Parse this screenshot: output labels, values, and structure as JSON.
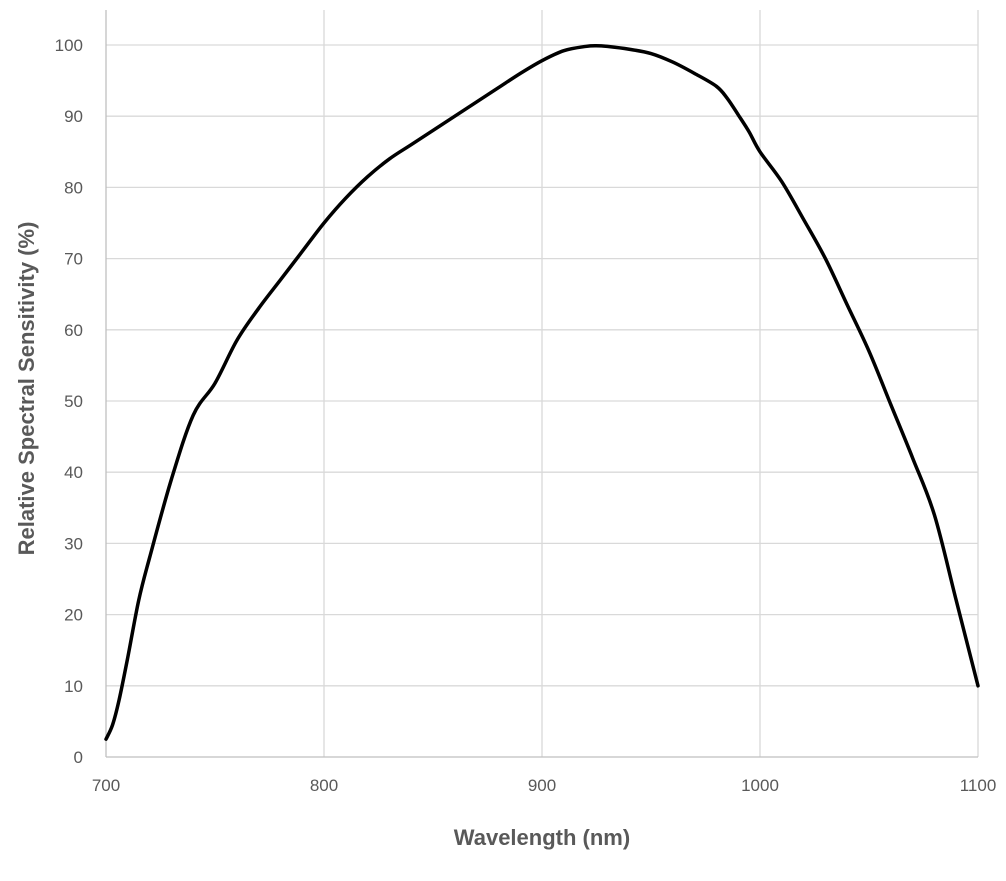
{
  "chart_data": {
    "type": "line",
    "xlabel": "Wavelength (nm)",
    "ylabel": "Relative Spectral Sensitivity (%)",
    "xlim": [
      700,
      1100
    ],
    "ylim": [
      0,
      100
    ],
    "x_ticks": [
      "700",
      "800",
      "900",
      "1000",
      "1100"
    ],
    "y_ticks": [
      "0",
      "10",
      "20",
      "30",
      "40",
      "50",
      "60",
      "70",
      "80",
      "90",
      "100"
    ],
    "grid": true,
    "series": [
      {
        "color": "#000000",
        "x": [
          700,
          703,
          706,
          710,
          715,
          720,
          730,
          740,
          750,
          760,
          770,
          780,
          790,
          800,
          810,
          820,
          830,
          840,
          850,
          860,
          870,
          880,
          890,
          900,
          910,
          920,
          925,
          930,
          940,
          950,
          960,
          970,
          980,
          985,
          990,
          995,
          1000,
          1010,
          1020,
          1030,
          1040,
          1050,
          1060,
          1070,
          1080,
          1090,
          1100
        ],
        "y": [
          2.5,
          4.5,
          8,
          14,
          22,
          28,
          39,
          48,
          52.5,
          58.5,
          63,
          67,
          71,
          75,
          78.5,
          81.5,
          84,
          86,
          88,
          90,
          92,
          94,
          96,
          97.8,
          99.2,
          99.8,
          99.9,
          99.8,
          99.4,
          98.8,
          97.6,
          96,
          94.2,
          92.5,
          90.2,
          87.8,
          85,
          80.8,
          75.5,
          70,
          63.5,
          57,
          49.5,
          42,
          34,
          22,
          10
        ]
      }
    ]
  }
}
